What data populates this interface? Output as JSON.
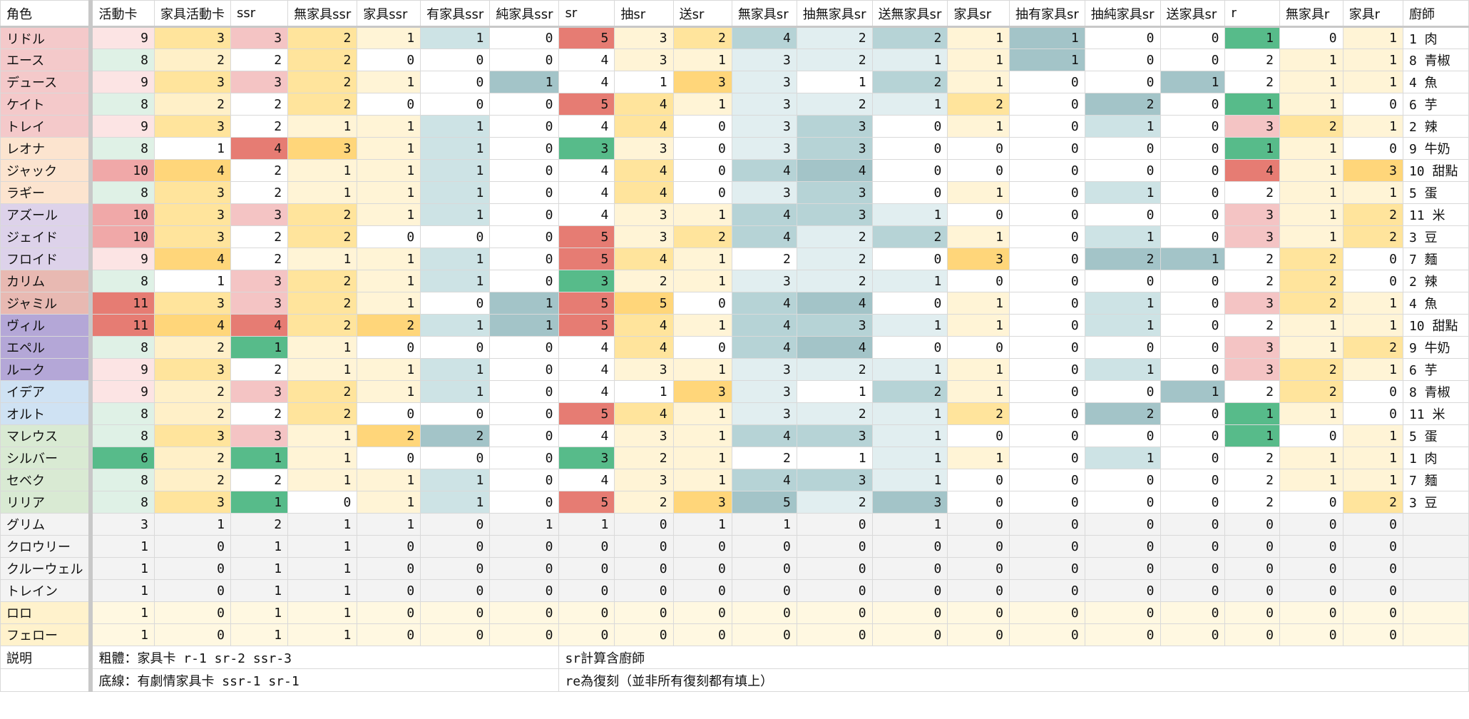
{
  "headers": [
    "角色",
    "活動卡",
    "家具活動卡",
    "ssr",
    "無家具ssr",
    "家具ssr",
    "有家具ssr",
    "純家具ssr",
    "sr",
    "抽sr",
    "送sr",
    "無家具sr",
    "抽無家具sr",
    "送無家具sr",
    "家具sr",
    "抽有家具sr",
    "抽純家具sr",
    "送家具sr",
    "r",
    "無家具r",
    "家具r",
    "廚師"
  ],
  "colors": {
    "name_red": "#f4c9ca",
    "name_orange": "#fce4cf",
    "name_purple": "#ddd2ea",
    "name_rose": "#e8b9b2",
    "name_violet": "#b4a7d7",
    "name_blue": "#cfe2f3",
    "name_green": "#d9ead3",
    "name_gray": "#f3f3f3",
    "name_cream": "#fff2cc",
    "red_strong": "#e67c73",
    "red_mid": "#f0a8a8",
    "red_light": "#f4c4c4",
    "pink_pale": "#fce4e4",
    "green_pale": "#dff1e6",
    "green_strong": "#57bb8a",
    "yellow_pale": "#fff4d6",
    "yellow_light": "#fff0c8",
    "yellow_mid": "#ffe49c",
    "yellow_strong": "#ffd67a",
    "teal_pale": "#e1eef0",
    "teal_light": "#cde3e5",
    "teal_mid": "#b6d3d6",
    "teal_strong": "#a3c4c8",
    "gray_row": "#f3f3f3",
    "cream_row": "#fff8e1",
    "white": "#ffffff"
  },
  "rows": [
    {
      "name": "リドル",
      "group": "red",
      "values": [
        9,
        3,
        3,
        2,
        1,
        1,
        0,
        5,
        3,
        2,
        4,
        2,
        2,
        1,
        1,
        0,
        0,
        1,
        0,
        1
      ],
      "chef": "1 肉"
    },
    {
      "name": "エース",
      "group": "red",
      "values": [
        8,
        2,
        2,
        2,
        0,
        0,
        0,
        4,
        3,
        1,
        3,
        2,
        1,
        1,
        1,
        0,
        0,
        2,
        1,
        1
      ],
      "chef": "8 青椒"
    },
    {
      "name": "デュース",
      "group": "red",
      "values": [
        9,
        3,
        3,
        2,
        1,
        0,
        1,
        4,
        1,
        3,
        3,
        1,
        2,
        1,
        0,
        0,
        1,
        2,
        1,
        1
      ],
      "chef": "4 魚"
    },
    {
      "name": "ケイト",
      "group": "red",
      "values": [
        8,
        2,
        2,
        2,
        0,
        0,
        0,
        5,
        4,
        1,
        3,
        2,
        1,
        2,
        0,
        2,
        0,
        1,
        1,
        0
      ],
      "chef": "6 芋"
    },
    {
      "name": "トレイ",
      "group": "red",
      "values": [
        9,
        3,
        2,
        1,
        1,
        1,
        0,
        4,
        4,
        0,
        3,
        3,
        0,
        1,
        0,
        1,
        0,
        3,
        2,
        1
      ],
      "chef": "2 辣"
    },
    {
      "name": "レオナ",
      "group": "orange",
      "values": [
        8,
        1,
        4,
        3,
        1,
        1,
        0,
        3,
        3,
        0,
        3,
        3,
        0,
        0,
        0,
        0,
        0,
        1,
        1,
        0
      ],
      "chef": "9 牛奶"
    },
    {
      "name": "ジャック",
      "group": "orange",
      "values": [
        10,
        4,
        2,
        1,
        1,
        1,
        0,
        4,
        4,
        0,
        4,
        4,
        0,
        0,
        0,
        0,
        0,
        4,
        1,
        3
      ],
      "chef": "10 甜點"
    },
    {
      "name": "ラギー",
      "group": "orange",
      "values": [
        8,
        3,
        2,
        1,
        1,
        1,
        0,
        4,
        4,
        0,
        3,
        3,
        0,
        1,
        0,
        1,
        0,
        2,
        1,
        1
      ],
      "chef": "5 蛋"
    },
    {
      "name": "アズール",
      "group": "purple",
      "values": [
        10,
        3,
        3,
        2,
        1,
        1,
        0,
        4,
        3,
        1,
        4,
        3,
        1,
        0,
        0,
        0,
        0,
        3,
        1,
        2
      ],
      "chef": "11 米"
    },
    {
      "name": "ジェイド",
      "group": "purple",
      "values": [
        10,
        3,
        2,
        2,
        0,
        0,
        0,
        5,
        3,
        2,
        4,
        2,
        2,
        1,
        0,
        1,
        0,
        3,
        1,
        2
      ],
      "chef": "3 豆"
    },
    {
      "name": "フロイド",
      "group": "purple",
      "values": [
        9,
        4,
        2,
        1,
        1,
        1,
        0,
        5,
        4,
        1,
        2,
        2,
        0,
        3,
        0,
        2,
        1,
        2,
        2,
        0
      ],
      "chef": "7 麵"
    },
    {
      "name": "カリム",
      "group": "rose",
      "values": [
        8,
        1,
        3,
        2,
        1,
        1,
        0,
        3,
        2,
        1,
        3,
        2,
        1,
        0,
        0,
        0,
        0,
        2,
        2,
        0
      ],
      "chef": "2 辣"
    },
    {
      "name": "ジャミル",
      "group": "rose",
      "values": [
        11,
        3,
        3,
        2,
        1,
        0,
        1,
        5,
        5,
        0,
        4,
        4,
        0,
        1,
        0,
        1,
        0,
        3,
        2,
        1
      ],
      "chef": "4 魚"
    },
    {
      "name": "ヴィル",
      "group": "violet",
      "values": [
        11,
        4,
        4,
        2,
        2,
        1,
        1,
        5,
        4,
        1,
        4,
        3,
        1,
        1,
        0,
        1,
        0,
        2,
        1,
        1
      ],
      "chef": "10 甜點"
    },
    {
      "name": "エペル",
      "group": "violet",
      "values": [
        8,
        2,
        1,
        1,
        0,
        0,
        0,
        4,
        4,
        0,
        4,
        4,
        0,
        0,
        0,
        0,
        0,
        3,
        1,
        2
      ],
      "chef": "9 牛奶"
    },
    {
      "name": "ルーク",
      "group": "violet",
      "values": [
        9,
        3,
        2,
        1,
        1,
        1,
        0,
        4,
        3,
        1,
        3,
        2,
        1,
        1,
        0,
        1,
        0,
        3,
        2,
        1
      ],
      "chef": "6 芋"
    },
    {
      "name": "イデア",
      "group": "blue",
      "values": [
        9,
        2,
        3,
        2,
        1,
        1,
        0,
        4,
        1,
        3,
        3,
        1,
        2,
        1,
        0,
        0,
        1,
        2,
        2,
        0
      ],
      "chef": "8 青椒"
    },
    {
      "name": "オルト",
      "group": "blue",
      "values": [
        8,
        2,
        2,
        2,
        0,
        0,
        0,
        5,
        4,
        1,
        3,
        2,
        1,
        2,
        0,
        2,
        0,
        1,
        1,
        0
      ],
      "chef": "11 米"
    },
    {
      "name": "マレウス",
      "group": "green",
      "values": [
        8,
        3,
        3,
        1,
        2,
        2,
        0,
        4,
        3,
        1,
        4,
        3,
        1,
        0,
        0,
        0,
        0,
        1,
        0,
        1
      ],
      "chef": "5 蛋"
    },
    {
      "name": "シルバー",
      "group": "green",
      "values": [
        6,
        2,
        1,
        1,
        0,
        0,
        0,
        3,
        2,
        1,
        2,
        1,
        1,
        1,
        0,
        1,
        0,
        2,
        1,
        1
      ],
      "chef": "1 肉"
    },
    {
      "name": "セベク",
      "group": "green",
      "values": [
        8,
        2,
        2,
        1,
        1,
        1,
        0,
        4,
        3,
        1,
        4,
        3,
        1,
        0,
        0,
        0,
        0,
        2,
        1,
        1
      ],
      "chef": "7 麵"
    },
    {
      "name": "リリア",
      "group": "green",
      "values": [
        8,
        3,
        1,
        0,
        1,
        1,
        0,
        5,
        2,
        3,
        5,
        2,
        3,
        0,
        0,
        0,
        0,
        2,
        0,
        2
      ],
      "chef": "3 豆"
    },
    {
      "name": "グリム",
      "group": "gray",
      "values": [
        3,
        1,
        2,
        1,
        1,
        0,
        1,
        1,
        0,
        1,
        1,
        0,
        1,
        0,
        0,
        0,
        0,
        0,
        0,
        0
      ],
      "chef": ""
    },
    {
      "name": "クロウリー",
      "group": "gray",
      "values": [
        1,
        0,
        1,
        1,
        0,
        0,
        0,
        0,
        0,
        0,
        0,
        0,
        0,
        0,
        0,
        0,
        0,
        0,
        0,
        0
      ],
      "chef": ""
    },
    {
      "name": "クルーウェル",
      "group": "gray",
      "values": [
        1,
        0,
        1,
        1,
        0,
        0,
        0,
        0,
        0,
        0,
        0,
        0,
        0,
        0,
        0,
        0,
        0,
        0,
        0,
        0
      ],
      "chef": ""
    },
    {
      "name": "トレイン",
      "group": "gray",
      "values": [
        1,
        0,
        1,
        1,
        0,
        0,
        0,
        0,
        0,
        0,
        0,
        0,
        0,
        0,
        0,
        0,
        0,
        0,
        0,
        0
      ],
      "chef": ""
    },
    {
      "name": "ロロ",
      "group": "cream",
      "values": [
        1,
        0,
        1,
        1,
        0,
        0,
        0,
        0,
        0,
        0,
        0,
        0,
        0,
        0,
        0,
        0,
        0,
        0,
        0,
        0
      ],
      "chef": ""
    },
    {
      "name": "フェロー",
      "group": "cream",
      "values": [
        1,
        0,
        1,
        1,
        0,
        0,
        0,
        0,
        0,
        0,
        0,
        0,
        0,
        0,
        0,
        0,
        0,
        0,
        0,
        0
      ],
      "chef": ""
    }
  ],
  "notes": {
    "label": "説明",
    "line1_left": "粗體：家具卡 r-1 sr-2 ssr-3",
    "line1_right": "sr計算含廚師",
    "line2_left": "底線：有劇情家具卡 ssr-1 sr-1",
    "line2_right": "re為復刻（並非所有復刻都有填上）"
  }
}
